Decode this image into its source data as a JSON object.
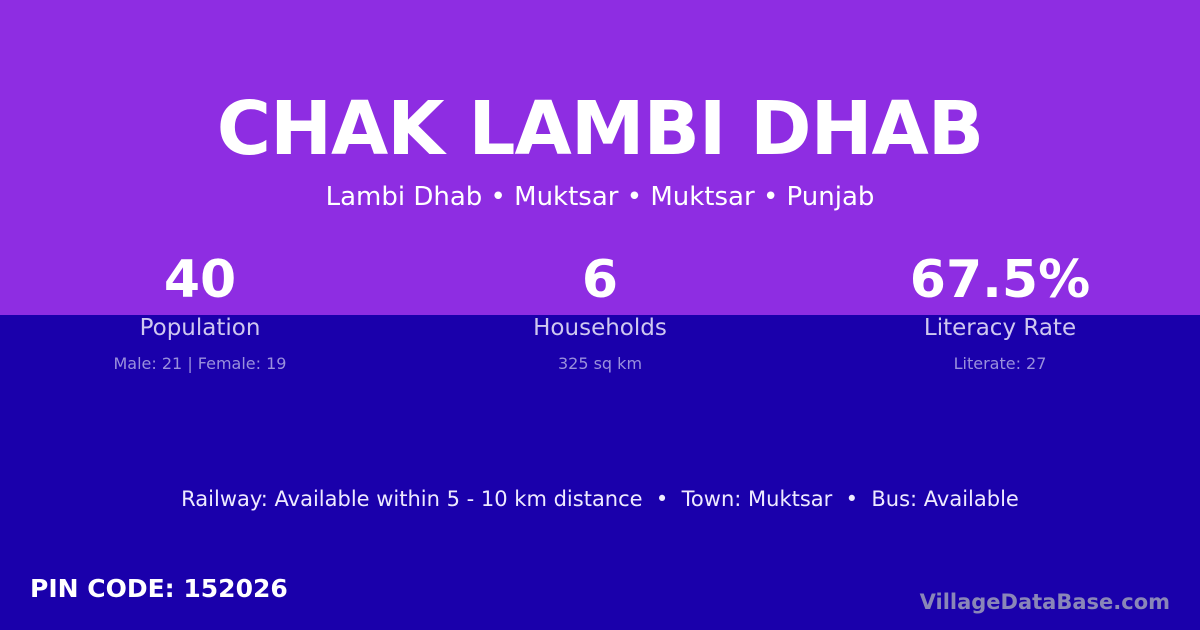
{
  "colors": {
    "top": "#8e2de2",
    "bottom": "#1a00ab"
  },
  "title": "CHAK LAMBI DHAB",
  "subtitle": "Lambi Dhab • Muktsar • Muktsar • Punjab",
  "stats": [
    {
      "value": "40",
      "label": "Population",
      "detail": "Male: 21 | Female: 19"
    },
    {
      "value": "6",
      "label": "Households",
      "detail": "325 sq km"
    },
    {
      "value": "67.5%",
      "label": "Literacy Rate",
      "detail": "Literate: 27"
    }
  ],
  "info": "Railway: Available within 5 - 10 km distance  •  Town: Muktsar  •  Bus: Available",
  "pin": "PIN CODE: 152026",
  "brand": "VillageDataBase.com"
}
